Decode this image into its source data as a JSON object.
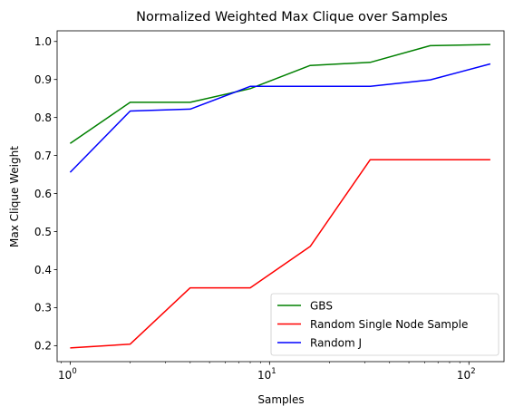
{
  "chart_data": {
    "type": "line",
    "title": "Normalized Weighted Max Clique over Samples",
    "xlabel": "Samples",
    "ylabel": "Max Clique Weight",
    "xscale": "log",
    "xlim": [
      0.86,
      150
    ],
    "ylim": [
      0.158,
      1.028
    ],
    "x_major_ticks": [
      {
        "value": 1,
        "base": "10",
        "exp": "0"
      },
      {
        "value": 10,
        "base": "10",
        "exp": "1"
      },
      {
        "value": 100,
        "base": "10",
        "exp": "2"
      }
    ],
    "y_ticks": [
      {
        "value": 0.2,
        "label": "0.2"
      },
      {
        "value": 0.3,
        "label": "0.3"
      },
      {
        "value": 0.4,
        "label": "0.4"
      },
      {
        "value": 0.5,
        "label": "0.5"
      },
      {
        "value": 0.6,
        "label": "0.6"
      },
      {
        "value": 0.7,
        "label": "0.7"
      },
      {
        "value": 0.8,
        "label": "0.8"
      },
      {
        "value": 0.9,
        "label": "0.9"
      },
      {
        "value": 1.0,
        "label": "1.0"
      }
    ],
    "x": [
      1,
      2,
      4,
      8,
      16,
      32,
      64,
      128
    ],
    "series": [
      {
        "name": "GBS",
        "color": "#008000",
        "values": [
          0.732,
          0.84,
          0.84,
          0.876,
          0.937,
          0.945,
          0.989,
          0.992
        ]
      },
      {
        "name": "Random Single Node Sample",
        "color": "#ff0000",
        "values": [
          0.194,
          0.204,
          0.352,
          0.352,
          0.461,
          0.689,
          0.689,
          0.689
        ]
      },
      {
        "name": "Random J",
        "color": "#0000ff",
        "values": [
          0.656,
          0.817,
          0.822,
          0.882,
          0.882,
          0.882,
          0.899,
          0.941
        ]
      }
    ],
    "legend": {
      "position": "lower-right"
    },
    "grid": false
  }
}
